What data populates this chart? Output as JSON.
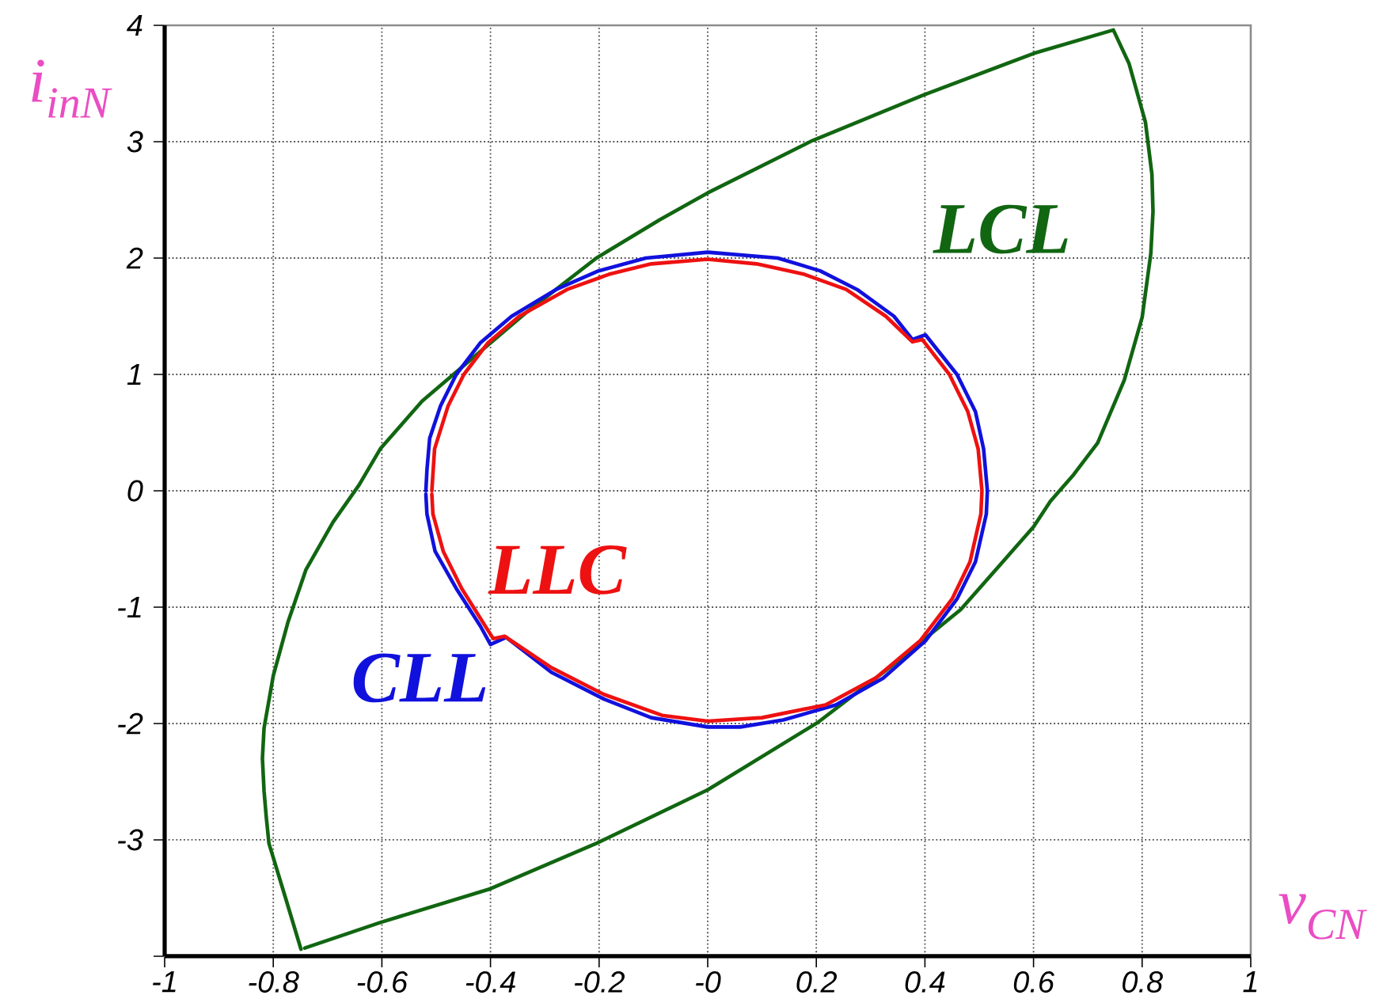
{
  "chart_data": {
    "type": "line",
    "xlabel": "v$_{CN}$",
    "ylabel": "i$_{inN}$",
    "xlim": [
      -1,
      1
    ],
    "ylim": [
      -4,
      4
    ],
    "xticks": [
      -1,
      -0.8,
      -0.6,
      -0.4,
      -0.2,
      {
        "value": 0,
        "label": "-0"
      },
      0.2,
      0.4,
      0.6,
      0.8,
      1
    ],
    "yticks": [
      {
        "value": -4,
        "label": null
      },
      -3,
      -2,
      -1,
      0,
      1,
      2,
      3,
      4
    ],
    "grid": true,
    "series": [
      {
        "name": "LCL",
        "color": "#116611",
        "x": [
          -0.749,
          -0.778,
          -0.808,
          -0.813,
          -0.817,
          -0.82,
          -0.817,
          -0.8,
          -0.773,
          -0.74,
          -0.69,
          -0.642,
          -0.603,
          -0.526,
          -0.458,
          -0.332,
          -0.205,
          -0.088,
          0.0,
          0.193,
          0.397,
          0.601,
          0.747,
          0.776,
          0.806,
          0.818,
          0.82,
          0.816,
          0.8,
          0.767,
          0.718,
          0.674,
          0.631,
          0.6,
          0.466,
          0.329,
          0.203,
          0.0,
          -0.205,
          -0.4,
          -0.603,
          -0.742
        ],
        "values": [
          -3.94,
          -3.49,
          -3.03,
          -2.8,
          -2.58,
          -2.3,
          -2.04,
          -1.59,
          -1.13,
          -0.68,
          -0.27,
          0.05,
          0.36,
          0.77,
          1.04,
          1.54,
          2.0,
          2.33,
          2.56,
          3.01,
          3.4,
          3.76,
          3.96,
          3.67,
          3.17,
          2.72,
          2.4,
          2.04,
          1.49,
          0.95,
          0.41,
          0.14,
          -0.09,
          -0.31,
          -1.02,
          -1.54,
          -1.99,
          -2.57,
          -3.03,
          -3.42,
          -3.71,
          -3.93
        ]
      },
      {
        "name": "CLL",
        "color": "#1111dd",
        "x": [
          -0.519,
          -0.517,
          -0.512,
          -0.492,
          -0.463,
          -0.419,
          -0.361,
          -0.279,
          -0.201,
          -0.114,
          0.0,
          0.129,
          0.207,
          0.275,
          0.343,
          0.377,
          0.401,
          0.459,
          0.493,
          0.508,
          0.515,
          0.513,
          0.493,
          0.459,
          0.401,
          0.323,
          0.236,
          0.139,
          0.06,
          0.0,
          -0.104,
          -0.191,
          -0.288,
          -0.371,
          -0.4,
          -0.419,
          -0.463,
          -0.502,
          -0.517,
          -0.519
        ],
        "values": [
          0.0,
          0.18,
          0.45,
          0.73,
          1.0,
          1.27,
          1.5,
          1.73,
          1.89,
          2.0,
          2.05,
          2.0,
          1.89,
          1.73,
          1.5,
          1.3,
          1.34,
          1.0,
          0.68,
          0.36,
          0.0,
          -0.2,
          -0.61,
          -0.93,
          -1.29,
          -1.61,
          -1.84,
          -1.97,
          -2.03,
          -2.03,
          -1.95,
          -1.79,
          -1.56,
          -1.26,
          -1.32,
          -1.16,
          -0.84,
          -0.52,
          -0.2,
          -0.03
        ]
      },
      {
        "name": "LLC",
        "color": "#ee1111",
        "x": [
          -0.508,
          -0.503,
          -0.478,
          -0.449,
          -0.405,
          -0.347,
          -0.259,
          -0.182,
          -0.104,
          0.0,
          0.09,
          0.178,
          0.255,
          0.328,
          0.377,
          0.395,
          0.445,
          0.479,
          0.498,
          0.505,
          0.503,
          0.483,
          0.45,
          0.391,
          0.309,
          0.217,
          0.1,
          0.0,
          -0.084,
          -0.191,
          -0.288,
          -0.374,
          -0.395,
          -0.41,
          -0.453,
          -0.487,
          -0.506,
          -0.508
        ],
        "values": [
          0.0,
          0.36,
          0.73,
          1.0,
          1.27,
          1.5,
          1.73,
          1.86,
          1.95,
          1.99,
          1.95,
          1.86,
          1.73,
          1.5,
          1.28,
          1.3,
          1.0,
          0.68,
          0.36,
          0.0,
          -0.2,
          -0.61,
          -0.93,
          -1.29,
          -1.61,
          -1.84,
          -1.95,
          -1.98,
          -1.93,
          -1.75,
          -1.52,
          -1.25,
          -1.27,
          -1.16,
          -0.84,
          -0.52,
          -0.2,
          -0.03
        ]
      }
    ]
  }
}
